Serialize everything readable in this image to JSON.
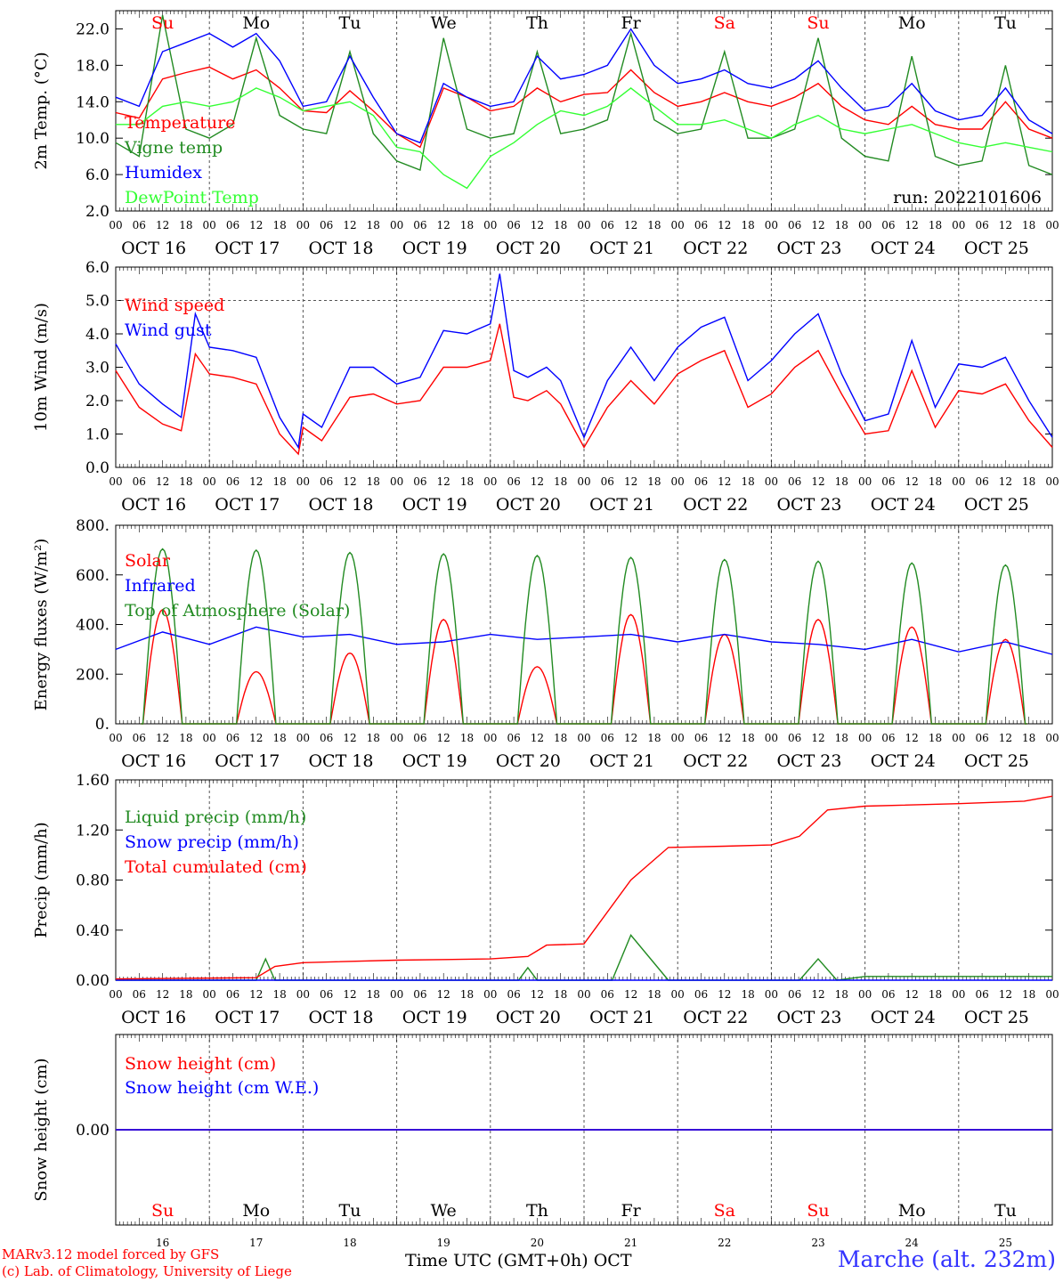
{
  "run_label": "run: 2022101606",
  "station": "Marche (alt. 232m)",
  "footer": {
    "line1": "MARv3.12 model forced by GFS",
    "line2": "(c) Lab. of Climatology, University of Liege"
  },
  "x_axis_title": "Time UTC (GMT+0h) OCT",
  "hour_ticks": [
    "00",
    "06",
    "12",
    "18"
  ],
  "end_tick": "00",
  "dates": [
    "OCT 16",
    "OCT 17",
    "OCT 18",
    "OCT 19",
    "OCT 20",
    "OCT 21",
    "OCT 22",
    "OCT 23",
    "OCT 24",
    "OCT 25"
  ],
  "day_numbers": [
    "16",
    "17",
    "18",
    "19",
    "20",
    "21",
    "22",
    "23",
    "24",
    "25"
  ],
  "weekdays": [
    {
      "label": "Su",
      "color": "#ff0000"
    },
    {
      "label": "Mo",
      "color": "#000000"
    },
    {
      "label": "Tu",
      "color": "#000000"
    },
    {
      "label": "We",
      "color": "#000000"
    },
    {
      "label": "Th",
      "color": "#000000"
    },
    {
      "label": "Fr",
      "color": "#000000"
    },
    {
      "label": "Sa",
      "color": "#ff0000"
    },
    {
      "label": "Su",
      "color": "#ff0000"
    },
    {
      "label": "Mo",
      "color": "#000000"
    },
    {
      "label": "Tu",
      "color": "#000000"
    }
  ],
  "chart_data": [
    {
      "type": "line",
      "ylabel": "2m Temp. (°C)",
      "ylim": [
        2.0,
        24.0
      ],
      "yticks": [
        "2.0",
        "6.0",
        "10.0",
        "14.0",
        "18.0",
        "22.0"
      ],
      "x_unit": "days since 16 Oct 00 UTC",
      "series": [
        {
          "name": "Temperature",
          "color": "#ff0000",
          "x": [
            0,
            0.25,
            0.5,
            0.75,
            1.0,
            1.25,
            1.5,
            1.75,
            2.0,
            2.25,
            2.5,
            2.75,
            3.0,
            3.25,
            3.5,
            3.75,
            4.0,
            4.25,
            4.5,
            4.75,
            5.0,
            5.25,
            5.5,
            5.75,
            6.0,
            6.25,
            6.5,
            6.75,
            7.0,
            7.25,
            7.5,
            7.75,
            8.0,
            8.25,
            8.5,
            8.75,
            9.0,
            9.25,
            9.5,
            9.75,
            10.0
          ],
          "values": [
            12.8,
            12.2,
            16.5,
            17.2,
            17.8,
            16.5,
            17.5,
            15.5,
            13.0,
            12.8,
            15.2,
            13.0,
            10.5,
            9.0,
            15.5,
            14.5,
            13.0,
            13.5,
            15.5,
            14.0,
            14.8,
            15.0,
            17.5,
            15.0,
            13.5,
            14.0,
            15.0,
            14.0,
            13.5,
            14.5,
            16.0,
            13.5,
            12.0,
            11.5,
            13.5,
            11.5,
            11.0,
            11.0,
            14.0,
            11.0,
            10.0
          ]
        },
        {
          "name": "Vigne temp",
          "color": "#228b22",
          "x": [
            0,
            0.25,
            0.5,
            0.75,
            1.0,
            1.25,
            1.5,
            1.75,
            2.0,
            2.25,
            2.5,
            2.75,
            3.0,
            3.25,
            3.5,
            3.75,
            4.0,
            4.25,
            4.5,
            4.75,
            5.0,
            5.25,
            5.5,
            5.75,
            6.0,
            6.25,
            6.5,
            6.75,
            7.0,
            7.25,
            7.5,
            7.75,
            8.0,
            8.25,
            8.5,
            8.75,
            9.0,
            9.25,
            9.5,
            9.75,
            10.0
          ],
          "values": [
            9.5,
            8.0,
            23.5,
            11.0,
            10.0,
            11.5,
            21.0,
            12.5,
            11.0,
            10.5,
            19.5,
            10.5,
            7.5,
            6.5,
            21.0,
            11.0,
            10.0,
            10.5,
            19.5,
            10.5,
            11.0,
            12.0,
            21.5,
            12.0,
            10.5,
            11.0,
            19.5,
            10.0,
            10.0,
            11.0,
            21.0,
            10.0,
            8.0,
            7.5,
            19.0,
            8.0,
            7.0,
            7.5,
            18.0,
            7.0,
            6.0
          ]
        },
        {
          "name": "Humidex",
          "color": "#0000ff",
          "x": [
            0,
            0.25,
            0.5,
            0.75,
            1.0,
            1.25,
            1.5,
            1.75,
            2.0,
            2.25,
            2.5,
            2.75,
            3.0,
            3.25,
            3.5,
            3.75,
            4.0,
            4.25,
            4.5,
            4.75,
            5.0,
            5.25,
            5.5,
            5.75,
            6.0,
            6.25,
            6.5,
            6.75,
            7.0,
            7.25,
            7.5,
            7.75,
            8.0,
            8.25,
            8.5,
            8.75,
            9.0,
            9.25,
            9.5,
            9.75,
            10.0
          ],
          "values": [
            14.5,
            13.5,
            19.5,
            20.5,
            21.5,
            20.0,
            21.5,
            18.5,
            13.5,
            14.0,
            19.0,
            14.5,
            10.5,
            9.5,
            16.0,
            14.5,
            13.5,
            14.0,
            19.0,
            16.5,
            17.0,
            18.0,
            22.0,
            18.0,
            16.0,
            16.5,
            17.5,
            16.0,
            15.5,
            16.5,
            18.5,
            15.5,
            13.0,
            13.5,
            16.0,
            13.0,
            12.0,
            12.5,
            15.5,
            12.0,
            10.5
          ]
        },
        {
          "name": "DewPoint Temp",
          "color": "#33ff33",
          "x": [
            0,
            0.25,
            0.5,
            0.75,
            1.0,
            1.25,
            1.5,
            1.75,
            2.0,
            2.25,
            2.5,
            2.75,
            3.0,
            3.25,
            3.5,
            3.75,
            4.0,
            4.25,
            4.5,
            4.75,
            5.0,
            5.25,
            5.5,
            5.75,
            6.0,
            6.25,
            6.5,
            6.75,
            7.0,
            7.25,
            7.5,
            7.75,
            8.0,
            8.25,
            8.5,
            8.75,
            9.0,
            9.25,
            9.5,
            9.75,
            10.0
          ],
          "values": [
            11.5,
            11.5,
            13.5,
            14.0,
            13.5,
            14.0,
            15.5,
            14.5,
            13.0,
            13.5,
            14.0,
            12.5,
            9.0,
            8.5,
            6.0,
            4.5,
            8.0,
            9.5,
            11.5,
            13.0,
            12.5,
            13.5,
            15.5,
            13.5,
            11.5,
            11.5,
            12.0,
            11.0,
            10.0,
            11.5,
            12.5,
            11.0,
            10.5,
            11.0,
            11.5,
            10.5,
            9.5,
            9.0,
            9.5,
            9.0,
            8.5
          ]
        }
      ]
    },
    {
      "type": "line",
      "ylabel": "10m Wind (m/s)",
      "ylim": [
        0.0,
        6.0
      ],
      "yticks": [
        "0.0",
        "1.0",
        "2.0",
        "3.0",
        "4.0",
        "5.0",
        "6.0"
      ],
      "x_unit": "days since 16 Oct 00 UTC",
      "series": [
        {
          "name": "Wind speed",
          "color": "#ff0000",
          "x": [
            0,
            0.25,
            0.5,
            0.7,
            0.85,
            1.0,
            1.25,
            1.5,
            1.75,
            1.95,
            2.0,
            2.2,
            2.5,
            2.75,
            3.0,
            3.25,
            3.5,
            3.75,
            4.0,
            4.1,
            4.25,
            4.4,
            4.6,
            4.75,
            5.0,
            5.25,
            5.5,
            5.75,
            6.0,
            6.25,
            6.5,
            6.75,
            7.0,
            7.25,
            7.5,
            7.75,
            8.0,
            8.25,
            8.5,
            8.75,
            9.0,
            9.25,
            9.5,
            9.75,
            10.0
          ],
          "values": [
            2.9,
            1.8,
            1.3,
            1.1,
            3.4,
            2.8,
            2.7,
            2.5,
            1.0,
            0.4,
            1.2,
            0.8,
            2.1,
            2.2,
            1.9,
            2.0,
            3.0,
            3.0,
            3.2,
            4.3,
            2.1,
            2.0,
            2.3,
            1.9,
            0.6,
            1.8,
            2.6,
            1.9,
            2.8,
            3.2,
            3.5,
            1.8,
            2.2,
            3.0,
            3.5,
            2.2,
            1.0,
            1.1,
            2.9,
            1.2,
            2.3,
            2.2,
            2.5,
            1.4,
            0.6
          ]
        },
        {
          "name": "Wind gust",
          "color": "#0000ff",
          "x": [
            0,
            0.25,
            0.5,
            0.7,
            0.85,
            1.0,
            1.25,
            1.5,
            1.75,
            1.95,
            2.0,
            2.2,
            2.5,
            2.75,
            3.0,
            3.25,
            3.5,
            3.75,
            4.0,
            4.1,
            4.25,
            4.4,
            4.6,
            4.75,
            5.0,
            5.25,
            5.5,
            5.75,
            6.0,
            6.25,
            6.5,
            6.75,
            7.0,
            7.25,
            7.5,
            7.75,
            8.0,
            8.25,
            8.5,
            8.75,
            9.0,
            9.25,
            9.5,
            9.75,
            10.0
          ],
          "values": [
            3.7,
            2.5,
            1.9,
            1.5,
            4.6,
            3.6,
            3.5,
            3.3,
            1.5,
            0.6,
            1.6,
            1.2,
            3.0,
            3.0,
            2.5,
            2.7,
            4.1,
            4.0,
            4.3,
            5.8,
            2.9,
            2.7,
            3.0,
            2.6,
            0.9,
            2.6,
            3.6,
            2.6,
            3.6,
            4.2,
            4.5,
            2.6,
            3.2,
            4.0,
            4.6,
            2.8,
            1.4,
            1.6,
            3.8,
            1.8,
            3.1,
            3.0,
            3.3,
            2.0,
            0.9
          ]
        }
      ]
    },
    {
      "type": "line",
      "ylabel": "Energy fluxes (W/m²)",
      "ylim": [
        0,
        800
      ],
      "yticks": [
        "0.",
        "200.",
        "400.",
        "600.",
        "800."
      ],
      "x_unit": "days since 16 Oct 00 UTC",
      "series": [
        {
          "name": "Solar",
          "color": "#ff0000",
          "daily_peak_at": 0.5,
          "daily_peaks": [
            460,
            210,
            285,
            420,
            230,
            440,
            360,
            420,
            390,
            340
          ]
        },
        {
          "name": "Infrared",
          "color": "#0000ff",
          "x": [
            0,
            0.5,
            1.0,
            1.5,
            2.0,
            2.5,
            3.0,
            3.5,
            4.0,
            4.5,
            5.0,
            5.5,
            6.0,
            6.5,
            7.0,
            7.5,
            8.0,
            8.5,
            9.0,
            9.5,
            10.0
          ],
          "values": [
            300,
            370,
            320,
            390,
            350,
            360,
            320,
            330,
            360,
            340,
            350,
            360,
            330,
            360,
            330,
            320,
            300,
            340,
            290,
            330,
            280
          ]
        },
        {
          "name": "Top of Atmosphere (Solar)",
          "color": "#228b22",
          "daily_peak_at": 0.5,
          "daily_peaks": [
            705,
            700,
            690,
            685,
            678,
            670,
            662,
            655,
            648,
            640
          ]
        }
      ]
    },
    {
      "type": "line",
      "ylabel": "Precip (mm/h)",
      "ylim": [
        0.0,
        1.6
      ],
      "yticks": [
        "0.00",
        "0.40",
        "0.80",
        "1.20",
        "1.60"
      ],
      "x_unit": "days since 16 Oct 00 UTC",
      "series": [
        {
          "name": "Liquid precip (mm/h)",
          "color": "#228b22",
          "x": [
            0,
            1.5,
            1.6,
            1.7,
            4.3,
            4.4,
            4.5,
            5.3,
            5.5,
            5.9,
            6.0,
            7.3,
            7.5,
            7.7,
            8.0,
            10.0
          ],
          "values": [
            0,
            0,
            0.17,
            0,
            0,
            0.1,
            0,
            0,
            0.36,
            0,
            0,
            0,
            0.17,
            0,
            0.03,
            0.03
          ]
        },
        {
          "name": "Snow precip (mm/h)",
          "color": "#0000ff",
          "x": [
            0,
            10
          ],
          "values": [
            0,
            0
          ]
        },
        {
          "name": "Total cumulated (cm)",
          "color": "#ff0000",
          "x": [
            0,
            1.5,
            1.7,
            2.0,
            3.0,
            4.0,
            4.4,
            4.6,
            5.0,
            5.5,
            5.9,
            6.5,
            7.0,
            7.3,
            7.6,
            8.0,
            9.0,
            9.7,
            10.0
          ],
          "values": [
            0.01,
            0.02,
            0.11,
            0.14,
            0.16,
            0.17,
            0.19,
            0.28,
            0.29,
            0.8,
            1.06,
            1.07,
            1.08,
            1.15,
            1.36,
            1.39,
            1.41,
            1.43,
            1.47
          ]
        }
      ]
    },
    {
      "type": "line",
      "ylabel": "Snow height (cm)",
      "ylim": [
        -1,
        1
      ],
      "yticks": [
        "0.00"
      ],
      "x_unit": "days since 16 Oct 00 UTC",
      "series": [
        {
          "name": "Snow height (cm)",
          "color": "#ff0000",
          "x": [
            0,
            10
          ],
          "values": [
            0,
            0
          ]
        },
        {
          "name": "Snow height (cm W.E.)",
          "color": "#0000ff",
          "x": [
            0,
            10
          ],
          "values": [
            0,
            0
          ]
        }
      ]
    }
  ]
}
